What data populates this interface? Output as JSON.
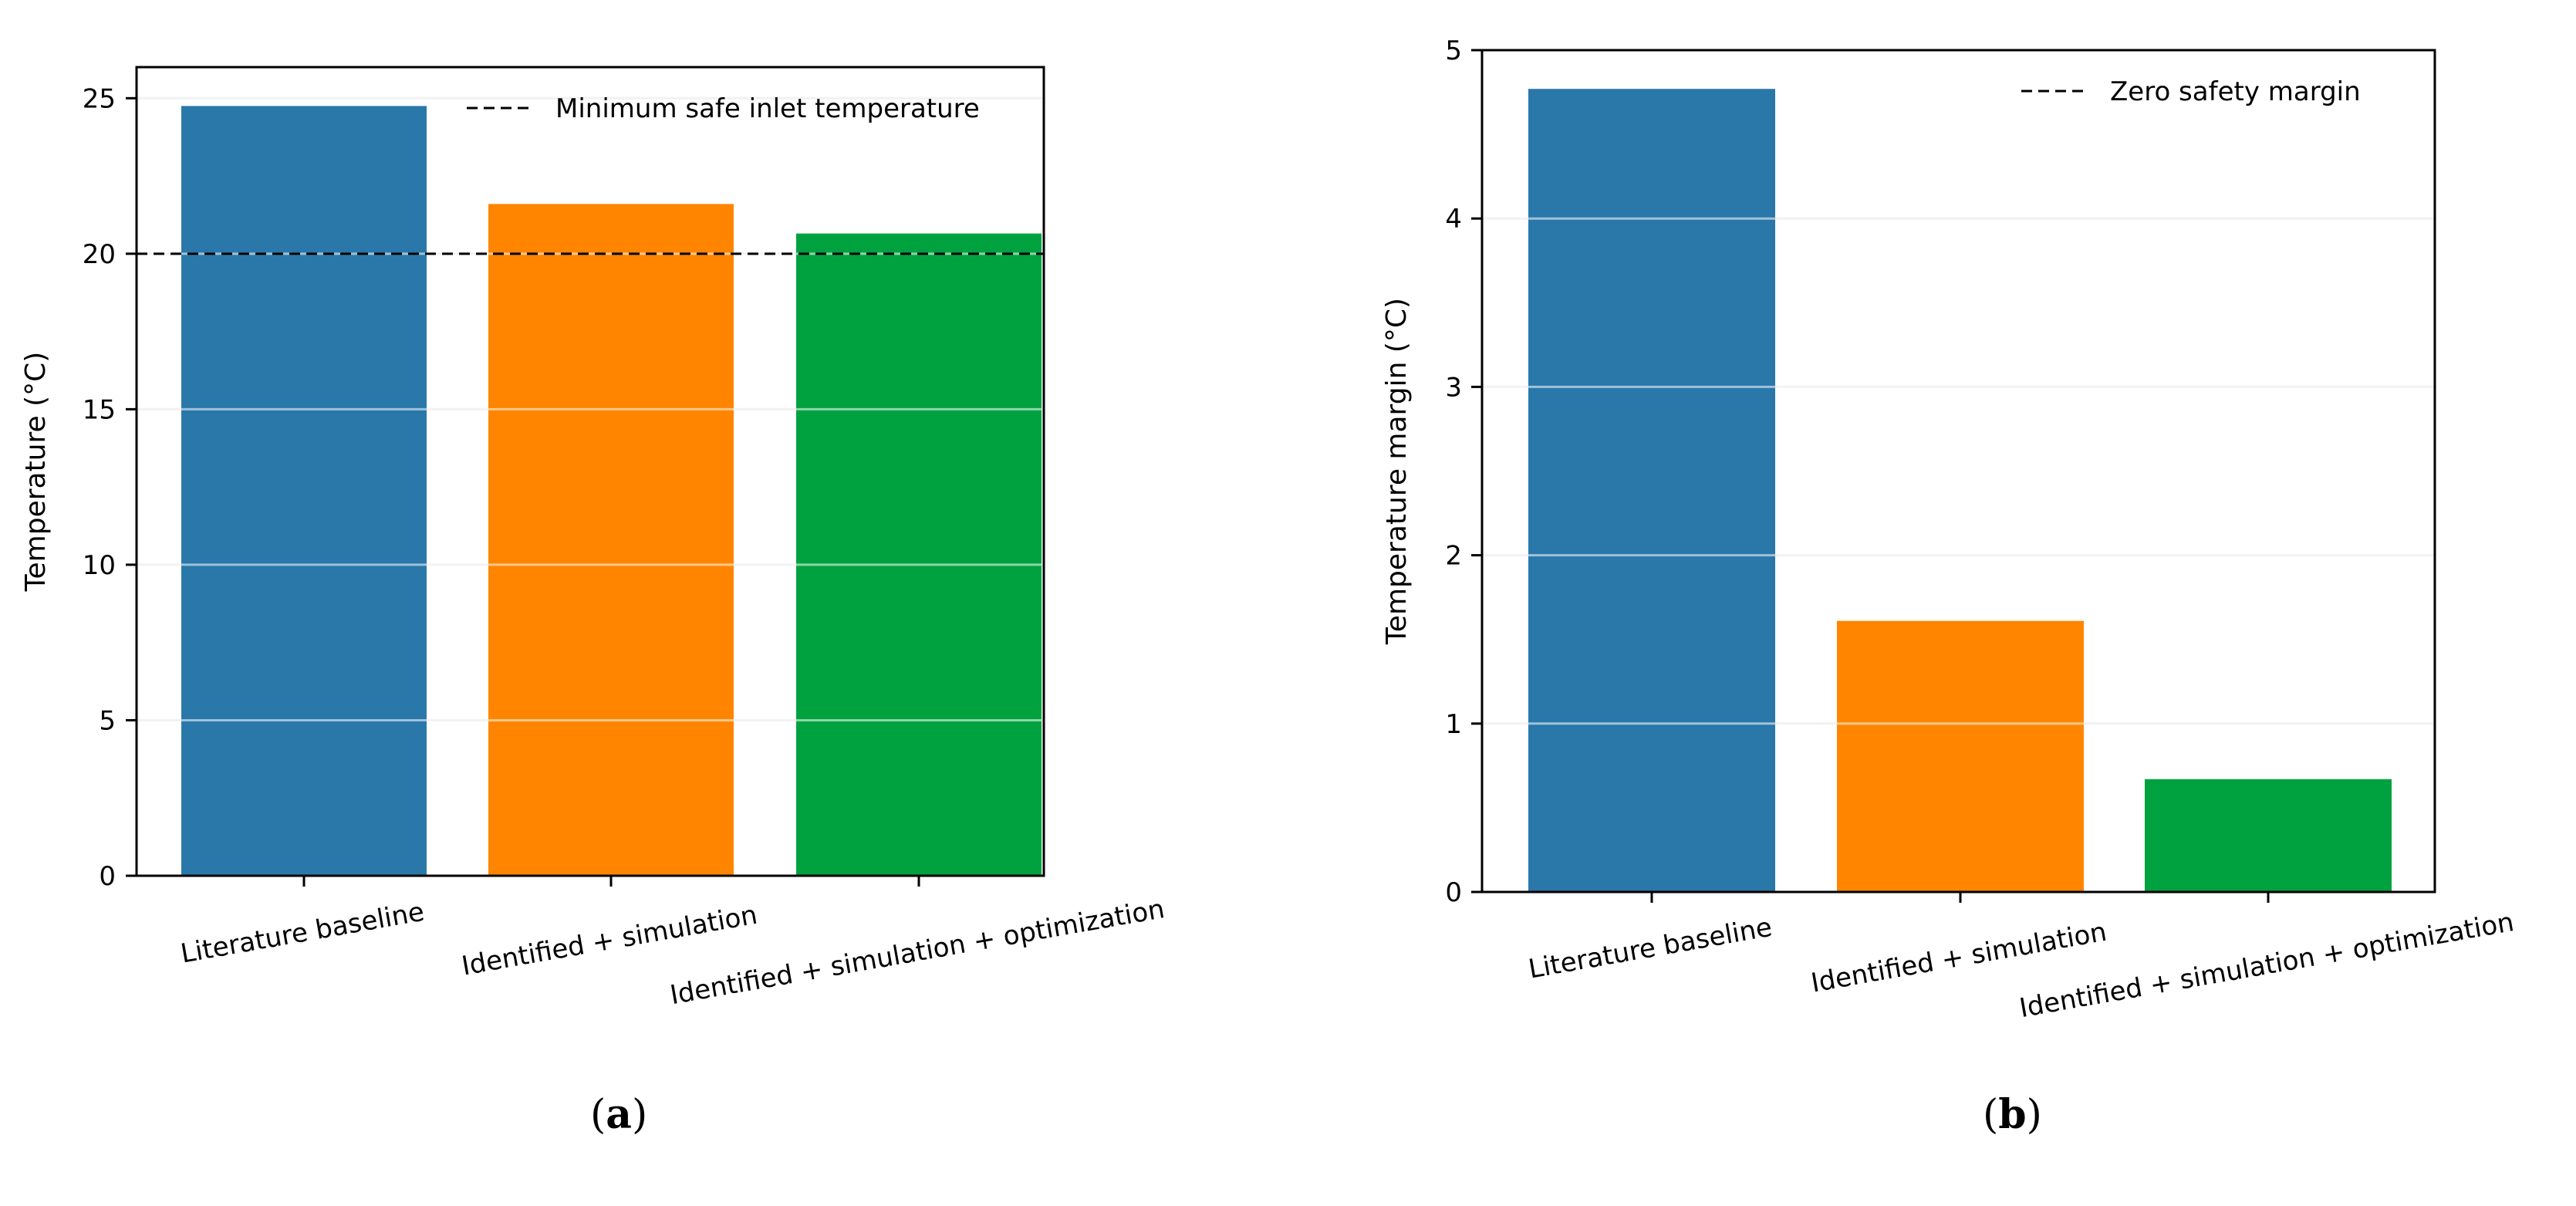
{
  "chart_data": [
    {
      "type": "bar",
      "panel": "(a)",
      "panel_letter": "a",
      "categories": [
        "Literature baseline",
        "Identified + simulation",
        "Identified + simulation + optimization"
      ],
      "values": [
        24.75,
        21.6,
        20.65
      ],
      "colors": [
        "#2a78aa",
        "#ff8500",
        "#00a23f"
      ],
      "ylabel": "Temperature (°C)",
      "xlabel": "",
      "ylim": [
        0,
        26
      ],
      "yticks": [
        0,
        5,
        10,
        15,
        20,
        25
      ],
      "grid": "y",
      "reference_line": {
        "y": 20,
        "style": "dashed",
        "label": "Minimum safe inlet temperature"
      },
      "legend": "top-right"
    },
    {
      "type": "bar",
      "panel": "(b)",
      "panel_letter": "b",
      "categories": [
        "Literature baseline",
        "Identified + simulation",
        "Identified + simulation + optimization"
      ],
      "values": [
        4.77,
        1.61,
        0.67
      ],
      "colors": [
        "#2a78aa",
        "#ff8500",
        "#00a23f"
      ],
      "ylabel": "Temperature margin (°C)",
      "xlabel": "",
      "ylim": [
        0,
        5
      ],
      "yticks": [
        0,
        1,
        2,
        3,
        4,
        5
      ],
      "grid": "y",
      "reference_line": {
        "y": 0,
        "style": "dashed",
        "label": "Zero safety margin"
      },
      "legend": "top-right"
    }
  ]
}
